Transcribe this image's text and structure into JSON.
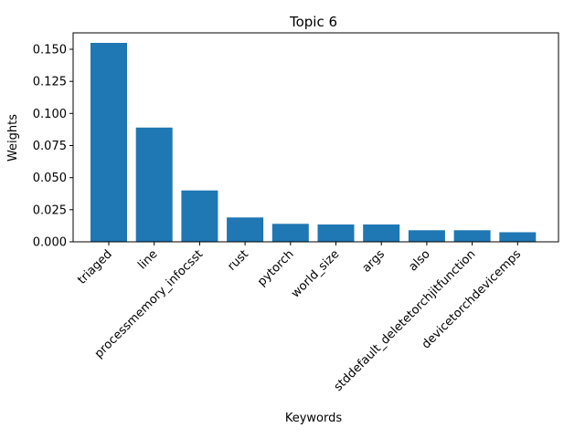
{
  "chart_data": {
    "type": "bar",
    "title": "Topic 6",
    "xlabel": "Keywords",
    "ylabel": "Weights",
    "categories": [
      "triaged",
      "line",
      "processmemory_infocsst",
      "rust",
      "pytorch",
      "world_size",
      "args",
      "also",
      "stddefault_deletetorchjitfunction",
      "devicetorchdevicemps"
    ],
    "values": [
      0.155,
      0.089,
      0.04,
      0.019,
      0.014,
      0.0135,
      0.0135,
      0.009,
      0.009,
      0.0075
    ],
    "ylim": [
      0,
      0.1628
    ],
    "yticks": [
      "0.000",
      "0.025",
      "0.050",
      "0.075",
      "0.100",
      "0.125",
      "0.150"
    ],
    "ytick_values": [
      0,
      0.025,
      0.05,
      0.075,
      0.1,
      0.125,
      0.15
    ],
    "bar_color": "#1f77b4",
    "grid": false,
    "legend": "none"
  }
}
